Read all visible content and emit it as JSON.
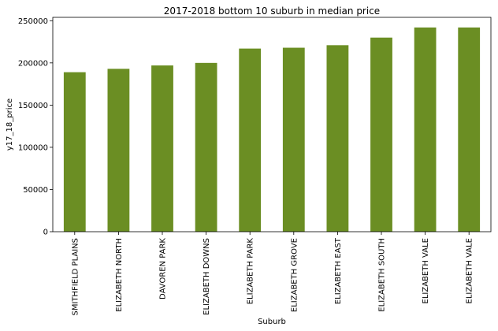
{
  "chart_data": {
    "type": "bar",
    "title": "2017-2018 bottom 10 suburb in median price",
    "xlabel": "Suburb",
    "ylabel": "y17_18_price",
    "categories": [
      "SMITHFIELD PLAINS",
      "ELIZABETH NORTH",
      "DAVOREN PARK",
      "ELIZABETH DOWNS",
      "ELIZABETH PARK",
      "ELIZABETH GROVE",
      "ELIZABETH EAST",
      "ELIZABETH SOUTH",
      "ELIZABETH VALE",
      "ELIZABETH VALE"
    ],
    "values": [
      189000,
      193000,
      197000,
      200000,
      217000,
      218000,
      221000,
      230000,
      242000,
      242000
    ],
    "ylim": [
      0,
      254000
    ],
    "yticks": [
      0,
      50000,
      100000,
      150000,
      200000,
      250000
    ],
    "bar_color": "#6b8e23",
    "grid": false,
    "legend": "none"
  }
}
